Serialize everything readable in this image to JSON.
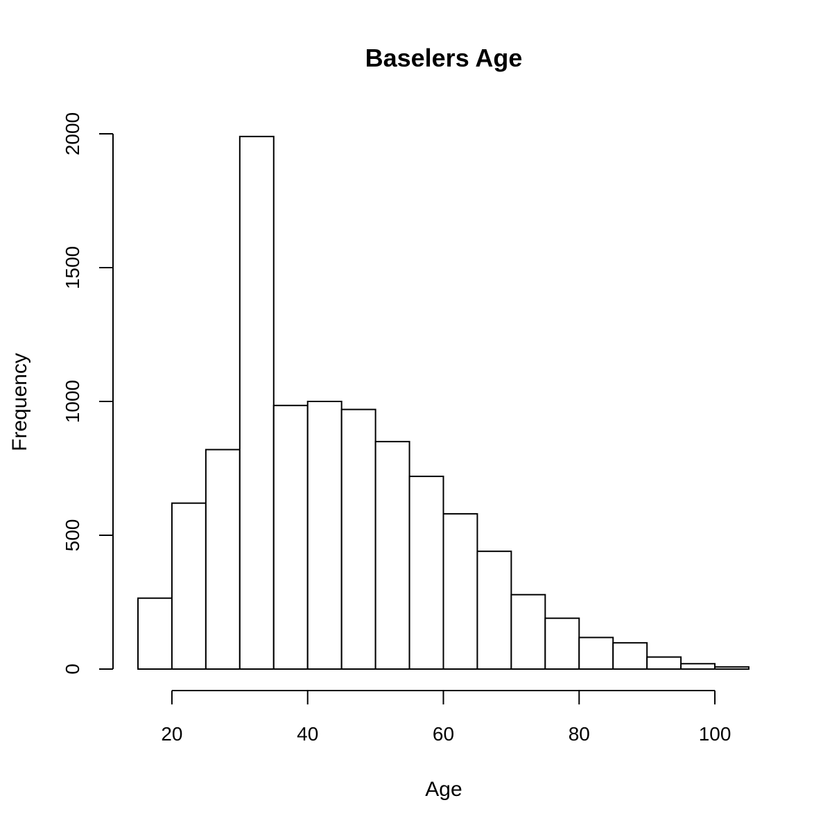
{
  "chart_data": {
    "type": "bar",
    "title": "Baselers Age",
    "xlabel": "Age",
    "ylabel": "Frequency",
    "bins": [
      {
        "x0": 15,
        "x1": 20,
        "value": 265
      },
      {
        "x0": 20,
        "x1": 25,
        "value": 620
      },
      {
        "x0": 25,
        "x1": 30,
        "value": 820
      },
      {
        "x0": 30,
        "x1": 35,
        "value": 1990
      },
      {
        "x0": 35,
        "x1": 40,
        "value": 985
      },
      {
        "x0": 40,
        "x1": 45,
        "value": 1000
      },
      {
        "x0": 45,
        "x1": 50,
        "value": 970
      },
      {
        "x0": 50,
        "x1": 55,
        "value": 850
      },
      {
        "x0": 55,
        "x1": 60,
        "value": 720
      },
      {
        "x0": 60,
        "x1": 65,
        "value": 580
      },
      {
        "x0": 65,
        "x1": 70,
        "value": 440
      },
      {
        "x0": 70,
        "x1": 75,
        "value": 278
      },
      {
        "x0": 75,
        "x1": 80,
        "value": 190
      },
      {
        "x0": 80,
        "x1": 85,
        "value": 118
      },
      {
        "x0": 85,
        "x1": 90,
        "value": 98
      },
      {
        "x0": 90,
        "x1": 95,
        "value": 45
      },
      {
        "x0": 95,
        "x1": 100,
        "value": 20
      },
      {
        "x0": 100,
        "x1": 105,
        "value": 8
      }
    ],
    "xticks": [
      20,
      40,
      60,
      80,
      100
    ],
    "xtick_labels": [
      "20",
      "40",
      "60",
      "80",
      "100"
    ],
    "yticks": [
      0,
      500,
      1000,
      1500,
      2000
    ],
    "ytick_labels": [
      "0",
      "500",
      "1000",
      "1500",
      "2000"
    ],
    "xlim": [
      15,
      105
    ],
    "ylim": [
      0,
      2000
    ],
    "grid": false,
    "bar_fill": "#ffffff",
    "bar_stroke": "#000000"
  }
}
